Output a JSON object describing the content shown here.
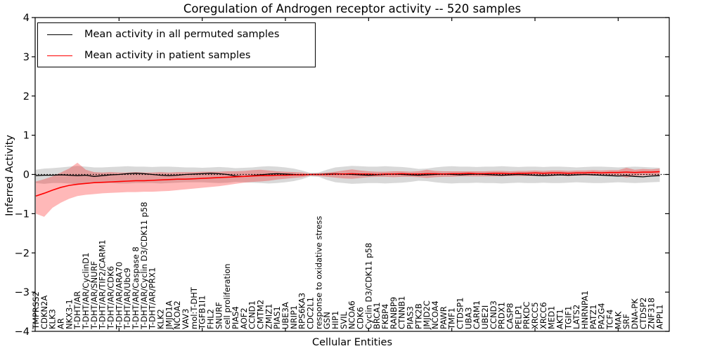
{
  "chart_data": {
    "type": "line",
    "title": "Coregulation of Androgen receptor activity -- 520 samples",
    "xlabel": "Cellular Entities",
    "ylabel": "Inferred Activity",
    "ylim": [
      -4,
      4
    ],
    "ytick_values": [
      4,
      3,
      2,
      1,
      0,
      -1,
      -2,
      -3,
      -4
    ],
    "ytick_labels": [
      "4",
      "3",
      "2",
      "1",
      "0",
      "−1",
      "−2",
      "−3",
      "−4"
    ],
    "xticks_at": [
      10,
      20,
      30,
      40,
      50,
      60,
      70
    ],
    "grid": false,
    "legend_position": "upper left",
    "legend": [
      {
        "label": "Mean activity in all permuted samples",
        "color": "#000000"
      },
      {
        "label": "Mean activity in patient samples",
        "color": "#ff0000"
      }
    ],
    "baseline": {
      "value": 0,
      "style": "dotted",
      "color": "#000000"
    },
    "categories": [
      "TMPRSS2",
      "CDKN2A",
      "KLK3",
      "AR",
      "NKX3-1",
      "T-DHT/AR",
      "T-DHT/AR/CyclinD1",
      "T-DHT/AR/SNURF",
      "T-DHT/AR/TIF2/CARM1",
      "T-DHT/AR/CDK6",
      "T-DHT/AR/ARA70",
      "T-DHT/AR/Ubc9",
      "T-DHT/AR/Caspase 8",
      "T-DHT/AR/Cyclin D3/CDK11 p58",
      "T-DHT/AR/PRX1",
      "KLK2",
      "JMJD1A",
      "NCOA2",
      "VAV3",
      "mol:T-DHT",
      "TGFB1I1",
      "FHL2",
      "SNURF",
      "cell proliferation",
      "PIAS4",
      "AOF2",
      "CCND1",
      "CMTM2",
      "ZMIZ1",
      "PIAS1",
      "UBE3A",
      "NRIP1",
      "RPS6KA3",
      "CDC2L1",
      "response to oxidative stress",
      "GSN",
      "HIP1",
      "SVIL",
      "NCOA6",
      "CDK6",
      "Cyclin D3/CDK11 p58",
      "BRCA1",
      "FKBP4",
      "RANBP9",
      "CTNNB1",
      "PIAS3",
      "PTK2B",
      "JMJD2C",
      "NCOA4",
      "PAWR",
      "TMF1",
      "CTDSP1",
      "UBA3",
      "CARM1",
      "UBE2I",
      "CCND3",
      "PRDX1",
      "CASP8",
      "PELP1",
      "PRKDC",
      "XRCC5",
      "XRCC6",
      "MED1",
      "AKT1",
      "TGIF1",
      "LATS2",
      "HNRNPA1",
      "PATZ1",
      "PA2G4",
      "TCF4",
      "MAK",
      "SRF",
      "DNA-PK",
      "CTDSP2",
      "ZNF318",
      "APPL1"
    ],
    "series": [
      {
        "name": "Mean activity in all permuted samples",
        "color": "#000000",
        "style": "solid",
        "values": [
          -0.03,
          -0.02,
          -0.02,
          -0.01,
          -0.02,
          -0.03,
          -0.02,
          -0.05,
          -0.03,
          -0.01,
          0.0,
          0.02,
          0.03,
          0.02,
          0.0,
          -0.02,
          -0.03,
          -0.02,
          0.0,
          0.01,
          0.02,
          0.03,
          0.02,
          0.0,
          -0.04,
          -0.05,
          -0.03,
          -0.01,
          0.01,
          0.02,
          0.01,
          0.0,
          -0.01,
          0.0,
          0.0,
          0.01,
          0.02,
          0.01,
          0.0,
          -0.01,
          -0.02,
          -0.01,
          0.0,
          0.01,
          0.0,
          -0.01,
          -0.02,
          -0.01,
          0.0,
          0.01,
          0.0,
          -0.01,
          0.0,
          0.01,
          0.0,
          -0.01,
          -0.02,
          -0.01,
          0.0,
          -0.01,
          -0.02,
          -0.03,
          -0.02,
          -0.01,
          -0.02,
          -0.01,
          0.0,
          -0.01,
          -0.02,
          -0.03,
          -0.04,
          -0.03,
          -0.05,
          -0.06,
          -0.04,
          -0.03
        ]
      },
      {
        "name": "Mean activity in patient samples",
        "color": "#ff0000",
        "style": "solid",
        "values": [
          -0.55,
          -0.48,
          -0.4,
          -0.33,
          -0.28,
          -0.25,
          -0.23,
          -0.21,
          -0.2,
          -0.19,
          -0.18,
          -0.17,
          -0.16,
          -0.16,
          -0.15,
          -0.14,
          -0.13,
          -0.12,
          -0.12,
          -0.11,
          -0.1,
          -0.09,
          -0.08,
          -0.07,
          -0.06,
          -0.05,
          -0.04,
          -0.03,
          -0.03,
          -0.02,
          -0.02,
          -0.01,
          -0.01,
          0.0,
          0.0,
          0.0,
          0.01,
          0.01,
          0.02,
          0.01,
          0.01,
          0.0,
          0.01,
          0.01,
          0.02,
          0.01,
          0.01,
          0.02,
          0.02,
          0.01,
          0.02,
          0.02,
          0.03,
          0.02,
          0.02,
          0.03,
          0.03,
          0.02,
          0.03,
          0.03,
          0.04,
          0.03,
          0.04,
          0.04,
          0.03,
          0.04,
          0.04,
          0.05,
          0.04,
          0.05,
          0.05,
          0.06,
          0.05,
          0.06,
          0.06,
          0.07
        ]
      }
    ],
    "bands": [
      {
        "name": "permuted samples std band",
        "color": "rgba(120,120,120,0.28)",
        "upper": [
          0.12,
          0.15,
          0.16,
          0.18,
          0.2,
          0.22,
          0.2,
          0.18,
          0.18,
          0.19,
          0.2,
          0.21,
          0.2,
          0.2,
          0.19,
          0.2,
          0.2,
          0.19,
          0.18,
          0.18,
          0.17,
          0.18,
          0.19,
          0.18,
          0.16,
          0.17,
          0.18,
          0.2,
          0.21,
          0.2,
          0.18,
          0.15,
          0.1,
          0.04,
          0.05,
          0.12,
          0.18,
          0.2,
          0.22,
          0.21,
          0.2,
          0.2,
          0.21,
          0.2,
          0.19,
          0.17,
          0.14,
          0.15,
          0.18,
          0.2,
          0.21,
          0.2,
          0.2,
          0.19,
          0.2,
          0.2,
          0.21,
          0.2,
          0.19,
          0.2,
          0.2,
          0.19,
          0.2,
          0.2,
          0.19,
          0.18,
          0.19,
          0.2,
          0.2,
          0.19,
          0.18,
          0.19,
          0.2,
          0.19,
          0.18,
          0.17
        ],
        "lower": [
          -0.22,
          -0.24,
          -0.22,
          -0.22,
          -0.23,
          -0.25,
          -0.23,
          -0.22,
          -0.22,
          -0.22,
          -0.23,
          -0.23,
          -0.22,
          -0.22,
          -0.22,
          -0.23,
          -0.22,
          -0.21,
          -0.2,
          -0.2,
          -0.2,
          -0.21,
          -0.22,
          -0.21,
          -0.19,
          -0.2,
          -0.21,
          -0.22,
          -0.23,
          -0.22,
          -0.2,
          -0.17,
          -0.12,
          -0.05,
          -0.06,
          -0.14,
          -0.2,
          -0.22,
          -0.24,
          -0.23,
          -0.22,
          -0.22,
          -0.23,
          -0.22,
          -0.21,
          -0.19,
          -0.16,
          -0.17,
          -0.2,
          -0.22,
          -0.23,
          -0.22,
          -0.22,
          -0.21,
          -0.22,
          -0.22,
          -0.23,
          -0.22,
          -0.21,
          -0.22,
          -0.22,
          -0.21,
          -0.22,
          -0.22,
          -0.21,
          -0.2,
          -0.21,
          -0.22,
          -0.22,
          -0.21,
          -0.2,
          -0.21,
          -0.22,
          -0.21,
          -0.2,
          -0.19
        ]
      },
      {
        "name": "patient samples std band",
        "color": "rgba(255,0,0,0.28)",
        "upper": [
          -0.18,
          -0.12,
          -0.05,
          0.05,
          0.15,
          0.3,
          0.12,
          0.06,
          0.05,
          0.06,
          0.05,
          0.05,
          0.06,
          0.05,
          0.05,
          0.06,
          0.05,
          0.06,
          0.06,
          0.06,
          0.07,
          0.07,
          0.07,
          0.08,
          0.08,
          0.09,
          0.11,
          0.12,
          0.1,
          0.08,
          0.07,
          0.06,
          0.05,
          0.02,
          0.03,
          0.05,
          0.07,
          0.1,
          0.13,
          0.1,
          0.08,
          0.07,
          0.07,
          0.08,
          0.08,
          0.07,
          0.08,
          0.12,
          0.09,
          0.08,
          0.08,
          0.08,
          0.08,
          0.08,
          0.08,
          0.09,
          0.09,
          0.08,
          0.09,
          0.09,
          0.1,
          0.09,
          0.1,
          0.1,
          0.09,
          0.1,
          0.1,
          0.11,
          0.1,
          0.11,
          0.11,
          0.17,
          0.12,
          0.14,
          0.13,
          0.15
        ],
        "lower": [
          -1.0,
          -1.08,
          -0.85,
          -0.72,
          -0.62,
          -0.55,
          -0.52,
          -0.5,
          -0.48,
          -0.47,
          -0.46,
          -0.45,
          -0.45,
          -0.44,
          -0.44,
          -0.43,
          -0.42,
          -0.4,
          -0.38,
          -0.36,
          -0.34,
          -0.32,
          -0.3,
          -0.27,
          -0.24,
          -0.21,
          -0.19,
          -0.18,
          -0.16,
          -0.13,
          -0.11,
          -0.09,
          -0.07,
          -0.03,
          -0.04,
          -0.06,
          -0.08,
          -0.1,
          -0.11,
          -0.09,
          -0.07,
          -0.06,
          -0.06,
          -0.07,
          -0.06,
          -0.06,
          -0.07,
          -0.09,
          -0.07,
          -0.06,
          -0.06,
          -0.05,
          -0.05,
          -0.05,
          -0.05,
          -0.05,
          -0.05,
          -0.04,
          -0.04,
          -0.04,
          -0.04,
          -0.04,
          -0.04,
          -0.03,
          -0.04,
          -0.03,
          -0.03,
          -0.03,
          -0.03,
          -0.03,
          -0.03,
          -0.08,
          -0.04,
          -0.03,
          -0.02,
          -0.03
        ]
      }
    ]
  }
}
